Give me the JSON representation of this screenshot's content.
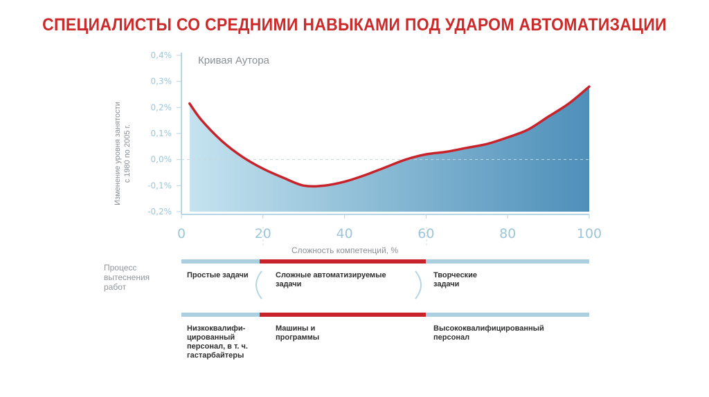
{
  "title": "СПЕЦИАЛИСТЫ СО СРЕДНИМИ НАВЫКАМИ ПОД УДАРОМ АВТОМАТИЗАЦИИ",
  "chart_data": {
    "type": "area",
    "title": "Кривая Аутора",
    "xlabel": "Сложность компетенций, %",
    "ylabel_lines": [
      "Изменение уровня занятости",
      "с 1980 по 2005 г."
    ],
    "xlim": [
      0,
      100
    ],
    "ylim": [
      -0.2,
      0.4
    ],
    "x_ticks": [
      "0",
      "20",
      "40",
      "60",
      "80",
      "100"
    ],
    "y_ticks": [
      "0,4%",
      "0,3%",
      "0,2%",
      "0,1%",
      "0,0%",
      "-0,1%",
      "-0,2%"
    ],
    "grid": false,
    "zero_line": true,
    "colors": {
      "line": "#c8222a",
      "fill_start": "#c5e3ef",
      "fill_end": "#4e8fba",
      "axis": "#b7d6e4"
    },
    "series": [
      {
        "x": [
          2,
          5,
          10,
          15,
          20,
          25,
          30,
          35,
          40,
          45,
          50,
          55,
          60,
          65,
          70,
          75,
          80,
          85,
          90,
          95,
          100
        ],
        "y": [
          0.215,
          0.15,
          0.07,
          0.01,
          -0.035,
          -0.07,
          -0.1,
          -0.1,
          -0.085,
          -0.06,
          -0.03,
          0.0,
          0.02,
          0.03,
          0.045,
          0.06,
          0.085,
          0.115,
          0.165,
          0.215,
          0.28
        ]
      }
    ]
  },
  "rows": {
    "process_label": "Процесс вытеснения работ",
    "tasks": [
      "Простые задачи",
      "Сложные автоматизируемые задачи",
      "Творческие задачи"
    ],
    "workers": [
      "Низкоквалифи-цированный персонал, в т. ч. гастарбайтеры",
      "Машины и программы",
      "Высококвалифицированный персонал"
    ]
  }
}
